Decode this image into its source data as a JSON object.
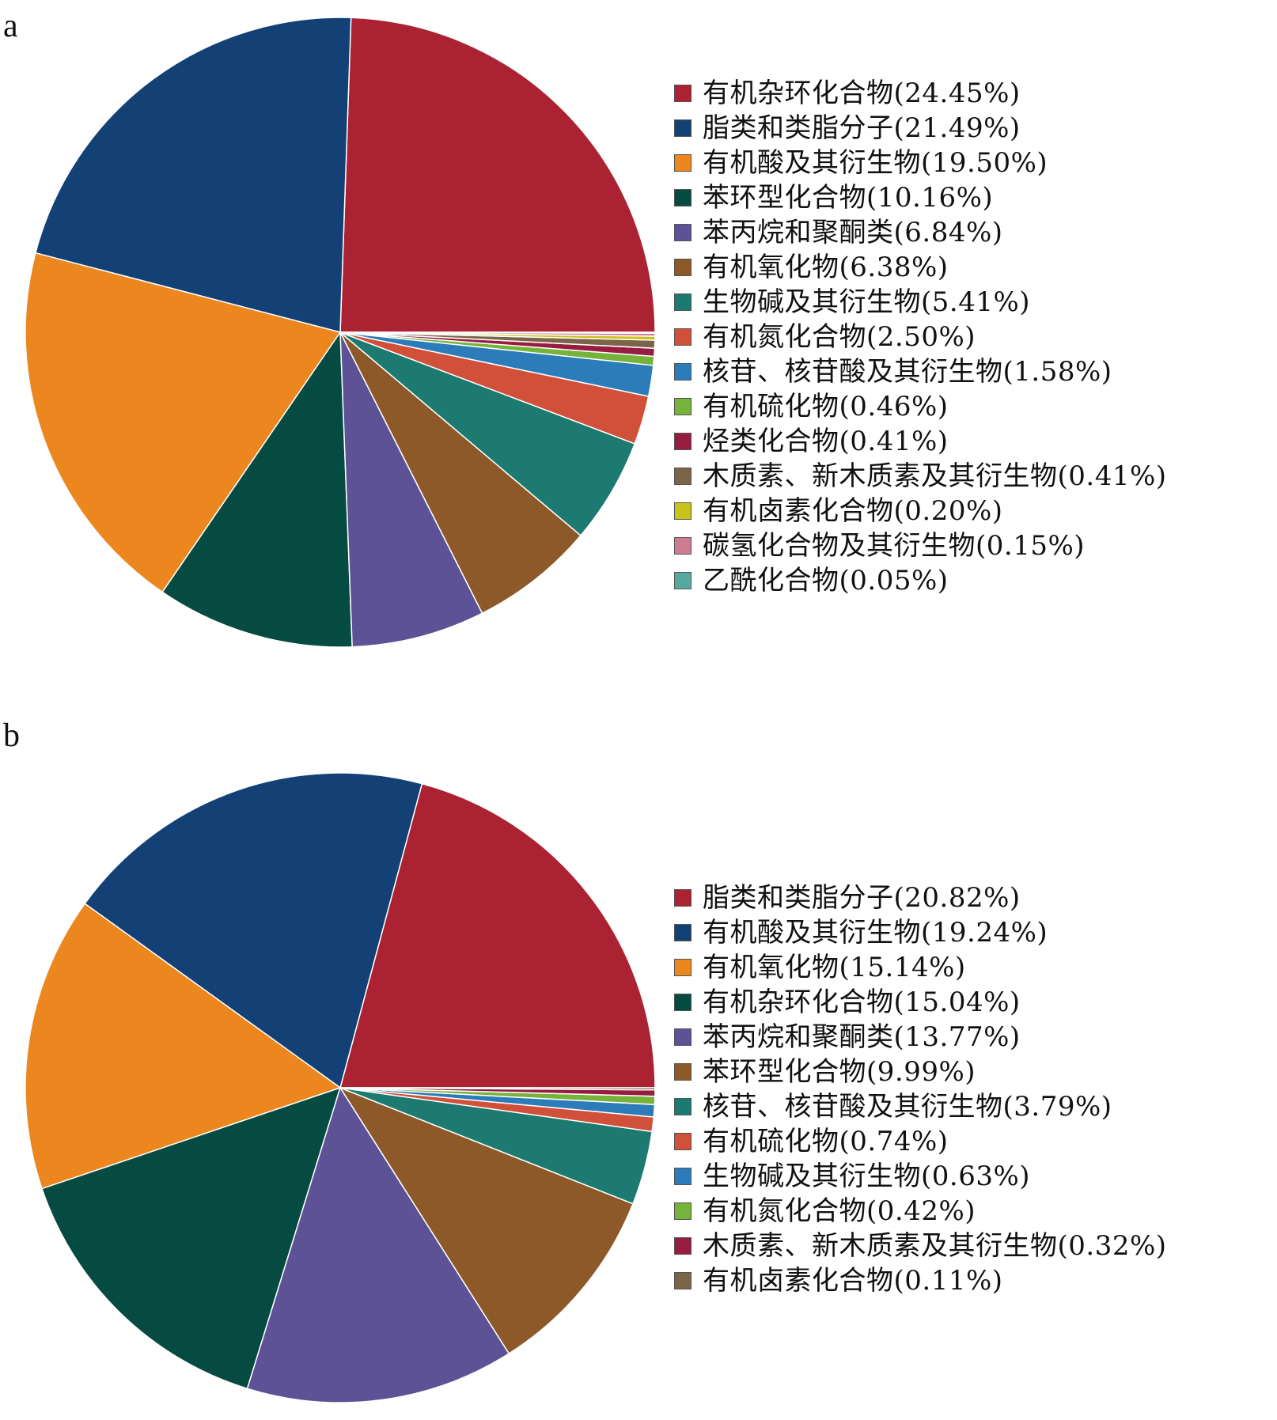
{
  "chart_data": [
    {
      "type": "pie",
      "panel_label": "a",
      "title": "",
      "slices": [
        {
          "label": "有机杂环化合物(24.45%)",
          "value": 24.45,
          "color": "#ab2232"
        },
        {
          "label": "脂类和类脂分子(21.49%)",
          "value": 21.49,
          "color": "#134176"
        },
        {
          "label": "有机酸及其衍生物(19.50%)",
          "value": 19.5,
          "color": "#ec861e"
        },
        {
          "label": "苯环型化合物(10.16%)",
          "value": 10.16,
          "color": "#054b41"
        },
        {
          "label": "苯丙烷和聚酮类(6.84%)",
          "value": 6.84,
          "color": "#5d5295"
        },
        {
          "label": "有机氧化物(6.38%)",
          "value": 6.38,
          "color": "#8d5928"
        },
        {
          "label": "生物碱及其衍生物(5.41%)",
          "value": 5.41,
          "color": "#1c7a70"
        },
        {
          "label": "有机氮化合物(2.50%)",
          "value": 2.5,
          "color": "#d1503a"
        },
        {
          "label": "核苷、核苷酸及其衍生物(1.58%)",
          "value": 1.58,
          "color": "#2c7cba"
        },
        {
          "label": "有机硫化物(0.46%)",
          "value": 0.46,
          "color": "#76b33a"
        },
        {
          "label": "烃类化合物(0.41%)",
          "value": 0.41,
          "color": "#971d40"
        },
        {
          "label": "木质素、新木质素及其衍生物(0.41%)",
          "value": 0.41,
          "color": "#7b6548"
        },
        {
          "label": "有机卤素化合物(0.20%)",
          "value": 0.2,
          "color": "#c8c21b"
        },
        {
          "label": "碳氢化合物及其衍生物(0.15%)",
          "value": 0.15,
          "color": "#cc7d92"
        },
        {
          "label": "乙酰化合物(0.05%)",
          "value": 0.05,
          "color": "#57a99f"
        }
      ]
    },
    {
      "type": "pie",
      "panel_label": "b",
      "title": "",
      "slices": [
        {
          "label": "脂类和类脂分子(20.82%)",
          "value": 20.82,
          "color": "#ab2232"
        },
        {
          "label": "有机酸及其衍生物(19.24%)",
          "value": 19.24,
          "color": "#134176"
        },
        {
          "label": "有机氧化物(15.14%)",
          "value": 15.14,
          "color": "#ec861e"
        },
        {
          "label": "有机杂环化合物(15.04%)",
          "value": 15.04,
          "color": "#054b41"
        },
        {
          "label": "苯丙烷和聚酮类(13.77%)",
          "value": 13.77,
          "color": "#5d5295"
        },
        {
          "label": "苯环型化合物(9.99%)",
          "value": 9.99,
          "color": "#8d5928"
        },
        {
          "label": "核苷、核苷酸及其衍生物(3.79%)",
          "value": 3.79,
          "color": "#1c7a70"
        },
        {
          "label": "有机硫化物(0.74%)",
          "value": 0.74,
          "color": "#d1503a"
        },
        {
          "label": "生物碱及其衍生物(0.63%)",
          "value": 0.63,
          "color": "#2c7cba"
        },
        {
          "label": "有机氮化合物(0.42%)",
          "value": 0.42,
          "color": "#76b33a"
        },
        {
          "label": "木质素、新木质素及其衍生物(0.32%)",
          "value": 0.32,
          "color": "#971d40"
        },
        {
          "label": "有机卤素化合物(0.11%)",
          "value": 0.11,
          "color": "#7b6548"
        }
      ]
    }
  ]
}
